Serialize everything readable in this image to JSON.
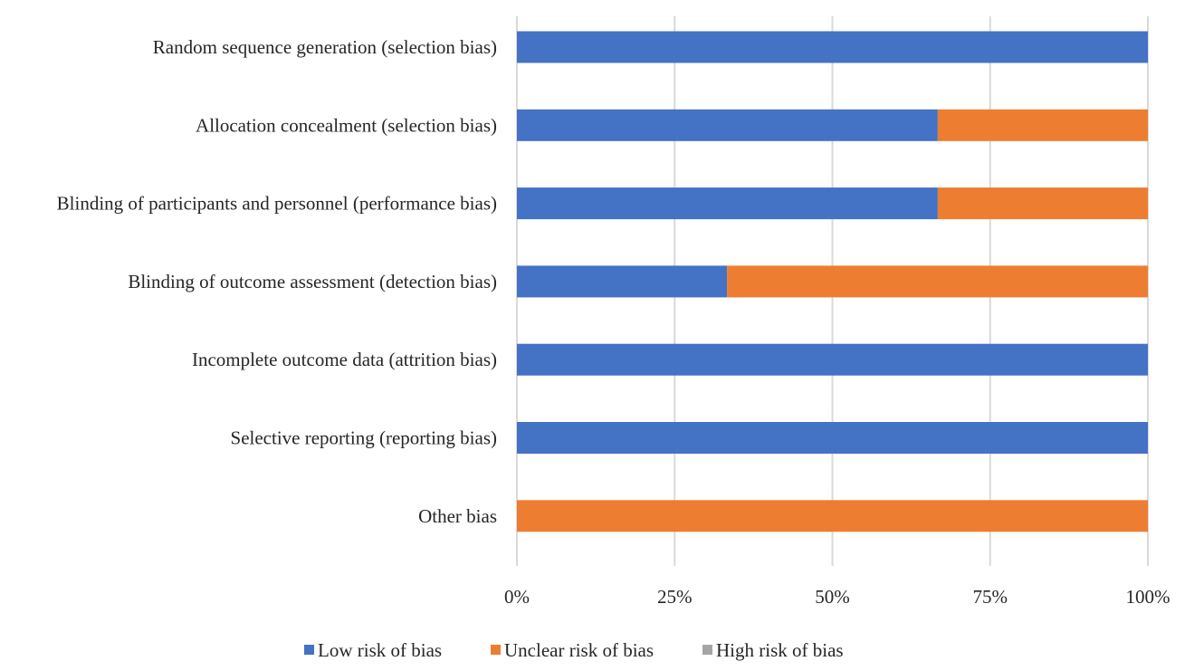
{
  "chart_data": {
    "type": "bar",
    "orientation": "horizontal",
    "stacked": "percent",
    "title": "",
    "xlabel": "",
    "ylabel": "",
    "categories": [
      "Random sequence generation (selection bias)",
      "Allocation concealment (selection bias)",
      "Blinding of participants and personnel (performance bias)",
      "Blinding of outcome assessment (detection bias)",
      "Incomplete outcome data (attrition bias)",
      "Selective reporting (reporting bias)",
      "Other bias"
    ],
    "series": [
      {
        "name": "Low risk of bias",
        "color": "#4472C4",
        "values": [
          100,
          66.7,
          66.7,
          33.3,
          100,
          100,
          0
        ]
      },
      {
        "name": "Unclear risk of bias",
        "color": "#ED7D31",
        "values": [
          0,
          33.3,
          33.3,
          66.7,
          0,
          0,
          100
        ]
      },
      {
        "name": "High risk of bias",
        "color": "#A5A5A5",
        "values": [
          0,
          0,
          0,
          0,
          0,
          0,
          0
        ]
      }
    ],
    "xlim": [
      0,
      100
    ],
    "xticks": [
      0,
      25,
      50,
      75,
      100
    ],
    "xtick_labels": [
      "0%",
      "25%",
      "50%",
      "75%",
      "100%"
    ],
    "grid": "vertical",
    "legend": "bottom-center"
  }
}
